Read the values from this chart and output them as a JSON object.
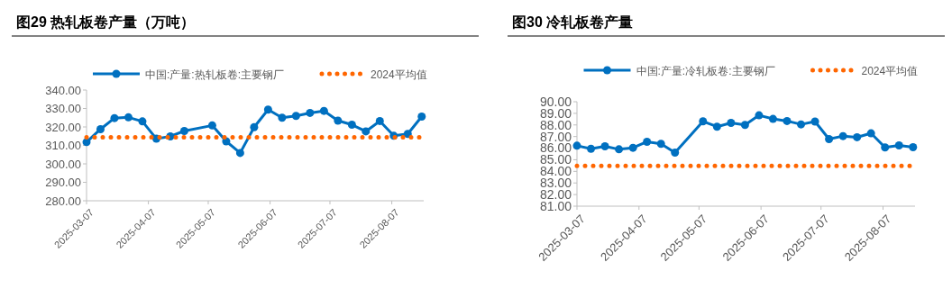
{
  "chart_data": [
    {
      "type": "line",
      "title": "图29 热轧板卷产量（万吨）",
      "x": [
        "2025-03-07",
        "2025-03-14",
        "2025-03-21",
        "2025-03-28",
        "2025-04-04",
        "2025-04-11",
        "2025-04-18",
        "2025-04-25",
        "2025-05-09",
        "2025-05-16",
        "2025-05-23",
        "2025-05-30",
        "2025-06-06",
        "2025-06-13",
        "2025-06-20",
        "2025-06-27",
        "2025-07-04",
        "2025-07-11",
        "2025-07-18",
        "2025-07-25",
        "2025-08-01",
        "2025-08-08",
        "2025-08-15",
        "2025-08-22"
      ],
      "series": [
        {
          "name": "中国:产量:热轧板卷:主要钢厂",
          "color": "#0070c0",
          "marker": "circle",
          "line_style": "solid",
          "values": [
            311.8,
            318.8,
            324.8,
            325.2,
            323.0,
            313.6,
            314.9,
            317.8,
            320.8,
            312.2,
            305.9,
            319.9,
            329.4,
            325.0,
            326.0,
            327.6,
            328.7,
            323.4,
            321.2,
            317.6,
            323.2,
            315.2,
            316.2,
            325.6
          ]
        },
        {
          "name": "2024平均值",
          "color": "#ff6600",
          "marker": "none",
          "line_style": "dotted",
          "values": [
            314.4,
            314.4,
            314.4,
            314.4,
            314.4,
            314.4,
            314.4,
            314.4,
            314.4,
            314.4,
            314.4,
            314.4,
            314.4,
            314.4,
            314.4,
            314.4,
            314.4,
            314.4,
            314.4,
            314.4,
            314.4,
            314.4,
            314.4,
            314.4
          ]
        }
      ],
      "xlim": [
        "2025-03-07",
        "2025-08-23"
      ],
      "xticks": [
        "2025-03-07",
        "2025-04-07",
        "2025-05-07",
        "2025-06-07",
        "2025-07-07",
        "2025-08-07"
      ],
      "ylim": [
        280,
        340
      ],
      "yticks": [
        {
          "value": 280,
          "label": "280.00"
        },
        {
          "value": 290,
          "label": "290.00"
        },
        {
          "value": 300,
          "label": "300.00"
        },
        {
          "value": 310,
          "label": "310.00"
        },
        {
          "value": 320,
          "label": "320.00"
        },
        {
          "value": 330,
          "label": "330.00"
        },
        {
          "value": 340,
          "label": "340.00"
        }
      ],
      "grid": false,
      "legend": "top"
    },
    {
      "type": "line",
      "title": "图30 冷轧板卷产量",
      "x": [
        "2025-03-07",
        "2025-03-14",
        "2025-03-21",
        "2025-03-28",
        "2025-04-04",
        "2025-04-11",
        "2025-04-18",
        "2025-04-25",
        "2025-05-09",
        "2025-05-16",
        "2025-05-23",
        "2025-05-30",
        "2025-06-06",
        "2025-06-13",
        "2025-06-20",
        "2025-06-27",
        "2025-07-04",
        "2025-07-11",
        "2025-07-18",
        "2025-07-25",
        "2025-08-01",
        "2025-08-08",
        "2025-08-15",
        "2025-08-22"
      ],
      "series": [
        {
          "name": "中国:产量:冷轧板卷:主要钢厂",
          "color": "#0070c0",
          "marker": "circle",
          "line_style": "solid",
          "values": [
            86.21,
            85.95,
            86.16,
            85.9,
            86.03,
            86.55,
            86.37,
            85.62,
            88.31,
            87.85,
            88.18,
            88.0,
            88.83,
            88.52,
            88.34,
            88.05,
            88.29,
            86.78,
            87.04,
            86.94,
            87.28,
            86.06,
            86.24,
            86.08
          ]
        },
        {
          "name": "2024平均值",
          "color": "#ff6600",
          "marker": "none",
          "line_style": "dotted",
          "values": [
            84.48,
            84.48,
            84.48,
            84.48,
            84.48,
            84.48,
            84.48,
            84.48,
            84.48,
            84.48,
            84.48,
            84.48,
            84.48,
            84.48,
            84.48,
            84.48,
            84.48,
            84.48,
            84.48,
            84.48,
            84.48,
            84.48,
            84.48,
            84.48
          ]
        }
      ],
      "xlim": [
        "2025-03-07",
        "2025-08-23"
      ],
      "xticks": [
        "2025-03-07",
        "2025-04-07",
        "2025-05-07",
        "2025-06-07",
        "2025-07-07",
        "2025-08-07"
      ],
      "ylim": [
        81,
        90
      ],
      "yticks": [
        {
          "value": 81,
          "label": "81.00"
        },
        {
          "value": 82,
          "label": "82.00"
        },
        {
          "value": 83,
          "label": "83.00"
        },
        {
          "value": 84,
          "label": "84.00"
        },
        {
          "value": 85,
          "label": "85.00"
        },
        {
          "value": 86,
          "label": "86.00"
        },
        {
          "value": 87,
          "label": "87.00"
        },
        {
          "value": 88,
          "label": "88.00"
        },
        {
          "value": 89,
          "label": "89.00"
        },
        {
          "value": 90,
          "label": "90.00"
        }
      ],
      "grid": false,
      "legend": "top"
    }
  ]
}
